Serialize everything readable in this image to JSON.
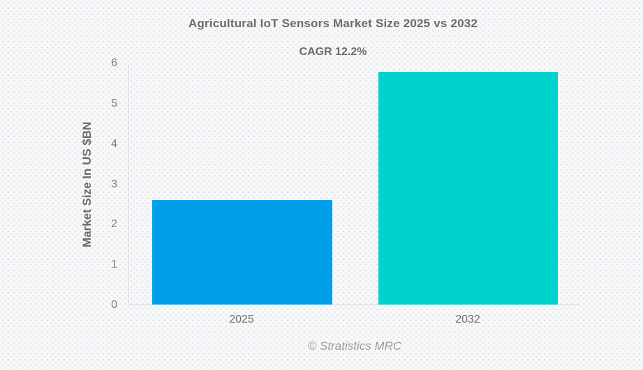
{
  "header": {
    "title": "Agricultural IoT Sensors Market Size 2025 vs 2032",
    "subtitle": "CAGR 12.2%"
  },
  "footer": {
    "credit": "© Stratistics MRC"
  },
  "chart_data": {
    "type": "bar",
    "categories": [
      "2025",
      "2032"
    ],
    "values": [
      2.6,
      5.8
    ],
    "title": "Agricultural IoT Sensors Market Size 2025 vs 2032",
    "subtitle": "CAGR 12.2%",
    "xlabel": "",
    "ylabel": "Market Size In US $BN",
    "ylim": [
      0,
      6
    ],
    "yticks": [
      0,
      1,
      2,
      3,
      4,
      5,
      6
    ],
    "grid": false,
    "legend": false,
    "bar_colors": [
      "#019fe9",
      "#00d2cd"
    ],
    "colors": {
      "bar_2025": "#019fe9",
      "bar_2032": "#00d2cd",
      "text_gray": "#6b6b6b",
      "axis_line": "#d9dbde",
      "background": "#f7f8f9"
    }
  }
}
